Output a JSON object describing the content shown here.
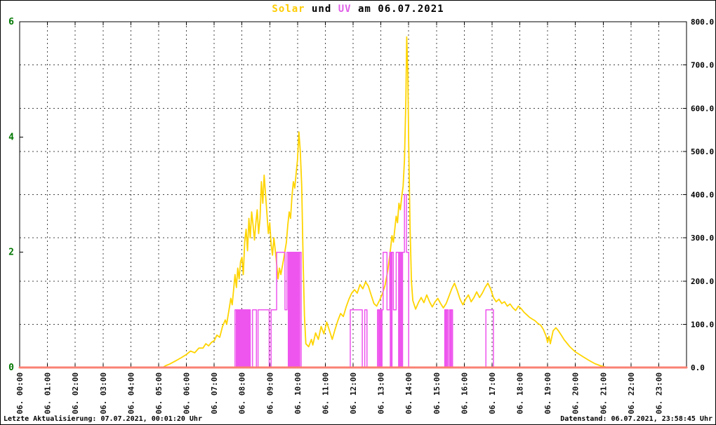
{
  "title": {
    "solar": "Solar",
    "und": " und ",
    "uv": "UV",
    "date": " am 06.07.2021",
    "solar_color": "#ffcc00",
    "uv_color": "#e060e8"
  },
  "footer": {
    "last_update": "Letzte Aktualisierung: 07.07.2021, 00:01:20 Uhr",
    "data_state": "Datenstand: 06.07.2021, 23:58:45 Uhr"
  },
  "chart_data": {
    "type": "line",
    "title": "Solar und UV am 06.07.2021",
    "x_range": [
      0,
      24
    ],
    "x_labels": [
      "06. 00:00",
      "06. 01:00",
      "06. 02:00",
      "06. 03:00",
      "06. 04:00",
      "06. 05:00",
      "06. 06:00",
      "06. 07:00",
      "06. 08:00",
      "06. 09:00",
      "06. 10:00",
      "06. 11:00",
      "06. 12:00",
      "06. 13:00",
      "06. 14:00",
      "06. 15:00",
      "06. 16:00",
      "06. 17:00",
      "06. 18:00",
      "06. 19:00",
      "06. 20:00",
      "06. 21:00",
      "06. 22:00",
      "06. 23:00"
    ],
    "left_axis": {
      "range": [
        0,
        6
      ],
      "tick_values": [
        0,
        2,
        4,
        6
      ],
      "tick_labels": [
        "0",
        "2",
        "4",
        "6"
      ],
      "color": "#007700"
    },
    "right_axis": {
      "range": [
        0,
        800
      ],
      "tick_values": [
        0,
        100,
        200,
        300,
        400,
        500,
        600,
        700,
        800
      ],
      "tick_labels": [
        "0.0",
        "100.0",
        "200.0",
        "300.0",
        "400.0",
        "500.0",
        "600.0",
        "700.0",
        "800.0"
      ],
      "color": "#000000"
    },
    "grid": {
      "on": true,
      "dash": "2,4",
      "color": "#444444"
    },
    "series": [
      {
        "name": "Solar",
        "axis": "right",
        "color": "#ffd400",
        "width": 1.8,
        "step": false,
        "points": [
          [
            0,
            0
          ],
          [
            5.15,
            0
          ],
          [
            5.25,
            4
          ],
          [
            5.4,
            8
          ],
          [
            5.6,
            15
          ],
          [
            5.8,
            22
          ],
          [
            6.0,
            30
          ],
          [
            6.15,
            38
          ],
          [
            6.3,
            34
          ],
          [
            6.45,
            45
          ],
          [
            6.6,
            45
          ],
          [
            6.7,
            55
          ],
          [
            6.8,
            50
          ],
          [
            6.9,
            58
          ],
          [
            7.0,
            62
          ],
          [
            7.1,
            75
          ],
          [
            7.2,
            70
          ],
          [
            7.3,
            95
          ],
          [
            7.4,
            110
          ],
          [
            7.45,
            100
          ],
          [
            7.55,
            140
          ],
          [
            7.6,
            160
          ],
          [
            7.65,
            145
          ],
          [
            7.75,
            215
          ],
          [
            7.8,
            185
          ],
          [
            7.85,
            230
          ],
          [
            7.9,
            205
          ],
          [
            7.95,
            245
          ],
          [
            8.0,
            255
          ],
          [
            8.05,
            215
          ],
          [
            8.1,
            290
          ],
          [
            8.15,
            320
          ],
          [
            8.2,
            270
          ],
          [
            8.25,
            345
          ],
          [
            8.3,
            300
          ],
          [
            8.35,
            360
          ],
          [
            8.4,
            330
          ],
          [
            8.45,
            295
          ],
          [
            8.5,
            335
          ],
          [
            8.55,
            365
          ],
          [
            8.6,
            310
          ],
          [
            8.65,
            345
          ],
          [
            8.7,
            430
          ],
          [
            8.75,
            380
          ],
          [
            8.8,
            445
          ],
          [
            8.85,
            400
          ],
          [
            8.9,
            355
          ],
          [
            8.95,
            310
          ],
          [
            9.0,
            335
          ],
          [
            9.05,
            285
          ],
          [
            9.1,
            260
          ],
          [
            9.15,
            300
          ],
          [
            9.2,
            270
          ],
          [
            9.25,
            240
          ],
          [
            9.3,
            205
          ],
          [
            9.35,
            230
          ],
          [
            9.4,
            215
          ],
          [
            9.5,
            250
          ],
          [
            9.6,
            290
          ],
          [
            9.65,
            330
          ],
          [
            9.7,
            360
          ],
          [
            9.75,
            345
          ],
          [
            9.8,
            395
          ],
          [
            9.85,
            430
          ],
          [
            9.9,
            415
          ],
          [
            9.95,
            450
          ],
          [
            10.0,
            480
          ],
          [
            10.05,
            545
          ],
          [
            10.1,
            500
          ],
          [
            10.15,
            420
          ],
          [
            10.2,
            250
          ],
          [
            10.25,
            120
          ],
          [
            10.3,
            55
          ],
          [
            10.4,
            48
          ],
          [
            10.5,
            65
          ],
          [
            10.55,
            52
          ],
          [
            10.65,
            80
          ],
          [
            10.75,
            65
          ],
          [
            10.85,
            95
          ],
          [
            10.95,
            78
          ],
          [
            11.05,
            105
          ],
          [
            11.15,
            85
          ],
          [
            11.25,
            65
          ],
          [
            11.35,
            88
          ],
          [
            11.45,
            108
          ],
          [
            11.55,
            125
          ],
          [
            11.65,
            118
          ],
          [
            11.75,
            140
          ],
          [
            11.85,
            158
          ],
          [
            11.95,
            172
          ],
          [
            12.05,
            180
          ],
          [
            12.15,
            172
          ],
          [
            12.25,
            192
          ],
          [
            12.35,
            182
          ],
          [
            12.45,
            198
          ],
          [
            12.55,
            188
          ],
          [
            12.65,
            168
          ],
          [
            12.75,
            148
          ],
          [
            12.85,
            142
          ],
          [
            12.95,
            155
          ],
          [
            13.05,
            170
          ],
          [
            13.15,
            190
          ],
          [
            13.25,
            225
          ],
          [
            13.35,
            275
          ],
          [
            13.4,
            305
          ],
          [
            13.45,
            290
          ],
          [
            13.5,
            320
          ],
          [
            13.55,
            350
          ],
          [
            13.6,
            335
          ],
          [
            13.65,
            380
          ],
          [
            13.7,
            365
          ],
          [
            13.75,
            395
          ],
          [
            13.8,
            420
          ],
          [
            13.85,
            480
          ],
          [
            13.9,
            620
          ],
          [
            13.93,
            765
          ],
          [
            13.97,
            680
          ],
          [
            14.0,
            520
          ],
          [
            14.05,
            330
          ],
          [
            14.1,
            200
          ],
          [
            14.15,
            155
          ],
          [
            14.25,
            135
          ],
          [
            14.35,
            150
          ],
          [
            14.45,
            162
          ],
          [
            14.55,
            150
          ],
          [
            14.65,
            168
          ],
          [
            14.75,
            152
          ],
          [
            14.85,
            140
          ],
          [
            14.95,
            152
          ],
          [
            15.05,
            160
          ],
          [
            15.15,
            148
          ],
          [
            15.25,
            138
          ],
          [
            15.35,
            148
          ],
          [
            15.45,
            165
          ],
          [
            15.55,
            182
          ],
          [
            15.65,
            195
          ],
          [
            15.75,
            178
          ],
          [
            15.85,
            158
          ],
          [
            15.95,
            145
          ],
          [
            16.05,
            158
          ],
          [
            16.15,
            168
          ],
          [
            16.25,
            152
          ],
          [
            16.35,
            162
          ],
          [
            16.45,
            175
          ],
          [
            16.55,
            162
          ],
          [
            16.65,
            172
          ],
          [
            16.75,
            185
          ],
          [
            16.85,
            195
          ],
          [
            16.95,
            182
          ],
          [
            17.05,
            162
          ],
          [
            17.15,
            152
          ],
          [
            17.25,
            158
          ],
          [
            17.35,
            148
          ],
          [
            17.45,
            152
          ],
          [
            17.55,
            142
          ],
          [
            17.65,
            147
          ],
          [
            17.75,
            138
          ],
          [
            17.85,
            132
          ],
          [
            17.95,
            142
          ],
          [
            18.05,
            136
          ],
          [
            18.15,
            128
          ],
          [
            18.25,
            122
          ],
          [
            18.35,
            116
          ],
          [
            18.45,
            112
          ],
          [
            18.55,
            108
          ],
          [
            18.65,
            102
          ],
          [
            18.75,
            98
          ],
          [
            18.85,
            88
          ],
          [
            18.95,
            72
          ],
          [
            19.0,
            58
          ],
          [
            19.05,
            72
          ],
          [
            19.1,
            55
          ],
          [
            19.2,
            85
          ],
          [
            19.3,
            92
          ],
          [
            19.4,
            84
          ],
          [
            19.5,
            74
          ],
          [
            19.6,
            64
          ],
          [
            19.7,
            56
          ],
          [
            19.8,
            48
          ],
          [
            19.9,
            42
          ],
          [
            20.0,
            36
          ],
          [
            20.15,
            30
          ],
          [
            20.3,
            24
          ],
          [
            20.5,
            16
          ],
          [
            20.7,
            9
          ],
          [
            20.9,
            4
          ],
          [
            21.1,
            1
          ],
          [
            21.3,
            0
          ],
          [
            24,
            0
          ]
        ]
      },
      {
        "name": "UV",
        "axis": "left",
        "color": "#ee55ee",
        "width": 1.5,
        "step": true,
        "points": [
          [
            0,
            0
          ],
          [
            7.75,
            1
          ],
          [
            8.3,
            0
          ],
          [
            8.38,
            1
          ],
          [
            8.52,
            0
          ],
          [
            8.58,
            1
          ],
          [
            8.98,
            0
          ],
          [
            9.05,
            1
          ],
          [
            9.25,
            2
          ],
          [
            9.55,
            1
          ],
          [
            9.62,
            2
          ],
          [
            10.13,
            0
          ],
          [
            11.9,
            1
          ],
          [
            12.33,
            0
          ],
          [
            12.42,
            1
          ],
          [
            12.5,
            0
          ],
          [
            12.88,
            1
          ],
          [
            13.08,
            2
          ],
          [
            13.22,
            1
          ],
          [
            13.32,
            2
          ],
          [
            13.45,
            1
          ],
          [
            13.55,
            2
          ],
          [
            13.85,
            3
          ],
          [
            13.92,
            2
          ],
          [
            14.0,
            0
          ],
          [
            15.3,
            1
          ],
          [
            15.42,
            0
          ],
          [
            15.47,
            1
          ],
          [
            15.58,
            0
          ],
          [
            16.78,
            1
          ],
          [
            17.05,
            0
          ],
          [
            24,
            0
          ]
        ],
        "fill_segments": [
          [
            7.78,
            8.3,
            1
          ],
          [
            9.65,
            10.1,
            2
          ],
          [
            12.9,
            13.06,
            1
          ],
          [
            13.32,
            13.42,
            2
          ],
          [
            13.62,
            13.8,
            2
          ],
          [
            15.3,
            15.4,
            1
          ],
          [
            15.47,
            15.56,
            1
          ]
        ]
      },
      {
        "name": "Nulllinie",
        "axis": "right",
        "color": "#fa8072",
        "width": 3,
        "step": false,
        "points": [
          [
            0,
            0
          ],
          [
            24,
            0
          ]
        ]
      }
    ]
  }
}
